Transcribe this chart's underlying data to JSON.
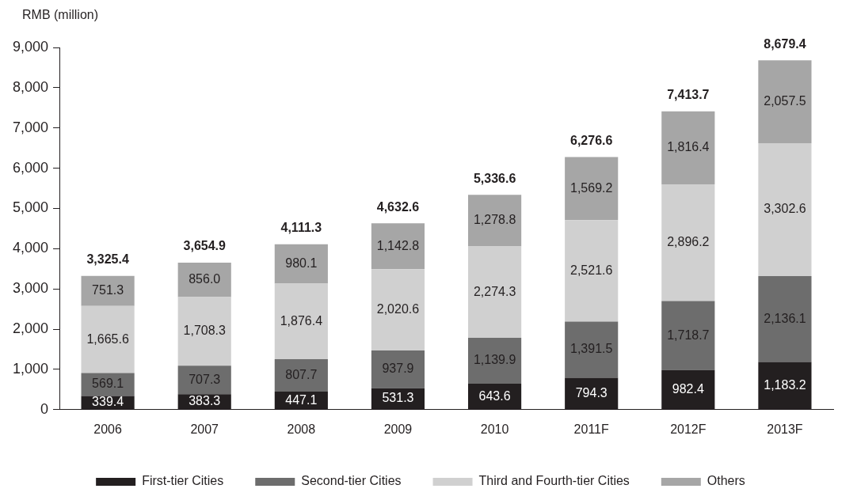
{
  "chart_data": {
    "type": "bar",
    "stacked": true,
    "ylabel": "RMB (million)",
    "categories": [
      "2006",
      "2007",
      "2008",
      "2009",
      "2010",
      "2011F",
      "2012F",
      "2013F"
    ],
    "series": [
      {
        "name": "First-tier Cities",
        "color": "#231f20",
        "values": [
          339.4,
          383.3,
          447.1,
          531.3,
          643.6,
          794.3,
          982.4,
          1183.2
        ],
        "value_labels": [
          "339.4",
          "383.3",
          "447.1",
          "531.3",
          "643.6",
          "794.3",
          "982.4",
          "1,183.2"
        ]
      },
      {
        "name": "Second-tier Cities",
        "color": "#6d6d6d",
        "values": [
          569.1,
          707.3,
          807.7,
          937.9,
          1139.9,
          1391.5,
          1718.7,
          2136.1
        ],
        "value_labels": [
          "569.1",
          "707.3",
          "807.7",
          "937.9",
          "1,139.9",
          "1,391.5",
          "1,718.7",
          "2,136.1"
        ]
      },
      {
        "name": "Third and Fourth-tier Cities",
        "color": "#d0d0d0",
        "values": [
          1665.6,
          1708.3,
          1876.4,
          2020.6,
          2274.3,
          2521.6,
          2896.2,
          3302.6
        ],
        "value_labels": [
          "1,665.6",
          "1,708.3",
          "1,876.4",
          "2,020.6",
          "2,274.3",
          "2,521.6",
          "2,896.2",
          "3,302.6"
        ]
      },
      {
        "name": "Others",
        "color": "#a6a6a6",
        "values": [
          751.3,
          856.0,
          980.1,
          1142.8,
          1278.8,
          1569.2,
          1816.4,
          2057.5
        ],
        "value_labels": [
          "751.3",
          "856.0",
          "980.1",
          "1,142.8",
          "1,278.8",
          "1,569.2",
          "1,816.4",
          "2,057.5"
        ]
      }
    ],
    "totals": [
      "3,325.4",
      "3,654.9",
      "4,111.3",
      "4,632.6",
      "5,336.6",
      "6,276.6",
      "7,413.7",
      "8,679.4"
    ],
    "ylim": [
      0,
      9000
    ],
    "yticks": [
      {
        "value": 0,
        "label": "0"
      },
      {
        "value": 1000,
        "label": "1,000"
      },
      {
        "value": 2000,
        "label": "2,000"
      },
      {
        "value": 3000,
        "label": "3,000"
      },
      {
        "value": 4000,
        "label": "4,000"
      },
      {
        "value": 5000,
        "label": "5,000"
      },
      {
        "value": 6000,
        "label": "6,000"
      },
      {
        "value": 7000,
        "label": "7,000"
      },
      {
        "value": 8000,
        "label": "8,000"
      },
      {
        "value": 9000,
        "label": "9,000"
      }
    ],
    "grid": false,
    "legend": "bottom"
  }
}
